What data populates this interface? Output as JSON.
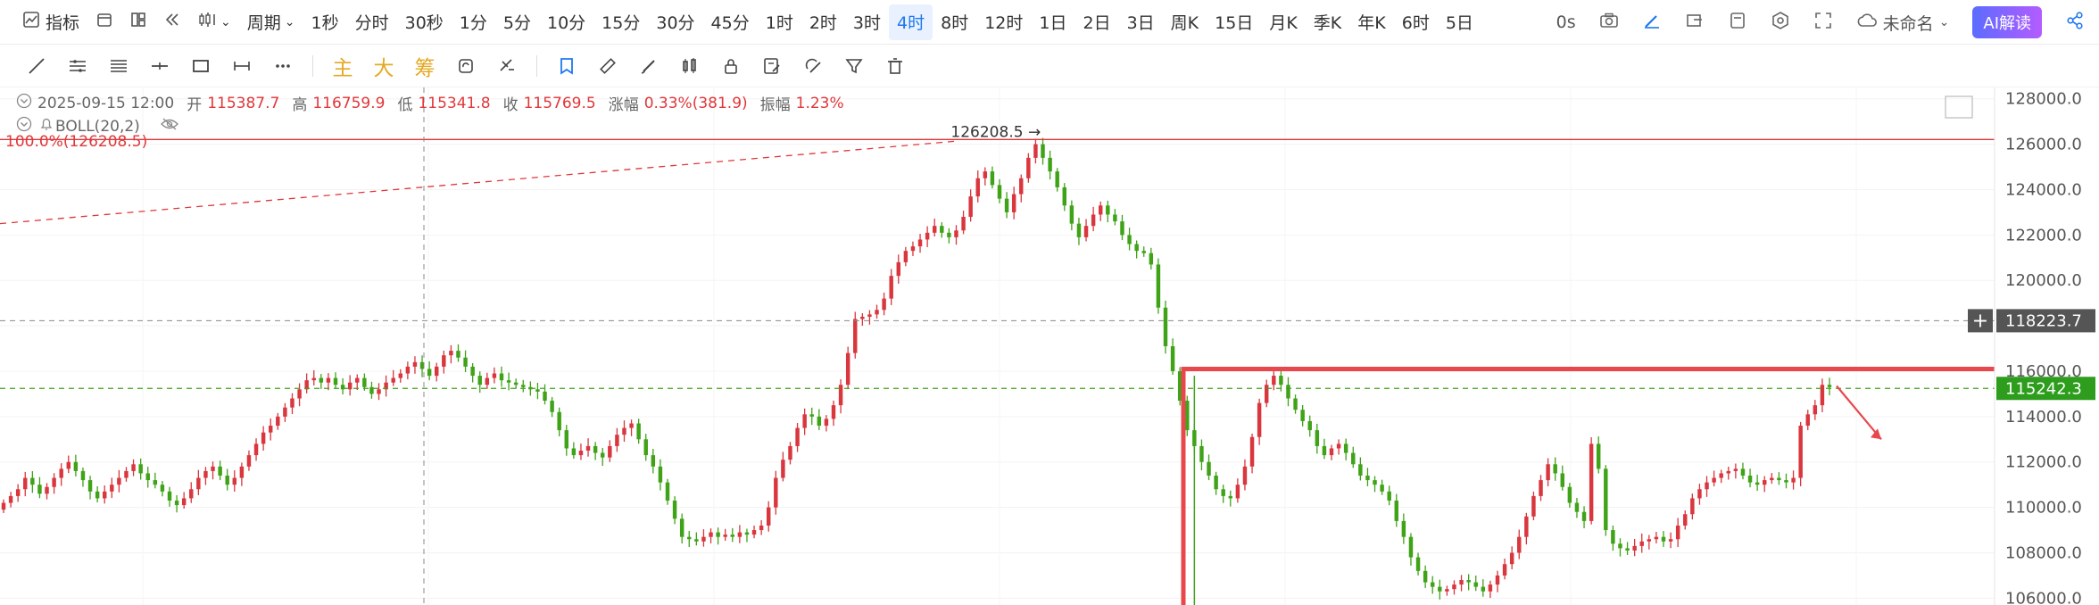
{
  "top_bar": {
    "indicator_label": "指标",
    "period_label": "周期",
    "intervals": [
      {
        "label": "1秒",
        "active": false
      },
      {
        "label": "分时",
        "active": false
      },
      {
        "label": "30秒",
        "active": false
      },
      {
        "label": "1分",
        "active": false
      },
      {
        "label": "5分",
        "active": false
      },
      {
        "label": "10分",
        "active": false
      },
      {
        "label": "15分",
        "active": false
      },
      {
        "label": "30分",
        "active": false
      },
      {
        "label": "45分",
        "active": false
      },
      {
        "label": "1时",
        "active": false
      },
      {
        "label": "2时",
        "active": false
      },
      {
        "label": "3时",
        "active": false
      },
      {
        "label": "4时",
        "active": true
      },
      {
        "label": "8时",
        "active": false
      },
      {
        "label": "12时",
        "active": false
      },
      {
        "label": "1日",
        "active": false
      },
      {
        "label": "2日",
        "active": false
      },
      {
        "label": "3日",
        "active": false
      },
      {
        "label": "周K",
        "active": false
      },
      {
        "label": "15日",
        "active": false
      },
      {
        "label": "月K",
        "active": false
      },
      {
        "label": "季K",
        "active": false
      },
      {
        "label": "年K",
        "active": false
      },
      {
        "label": "6时",
        "active": false
      },
      {
        "label": "5日",
        "active": false
      }
    ],
    "timer": "0s",
    "layout_name": "未命名",
    "ai_button": "AI解读"
  },
  "drawing_toolbar": {
    "main_label": "主",
    "big_label": "大",
    "chip_label": "筹"
  },
  "ohlc_info": {
    "datetime": "2025-09-15 12:00",
    "open_label": "开",
    "open": "115387.7",
    "high_label": "高",
    "high": "116759.9",
    "low_label": "低",
    "low": "115341.8",
    "close_label": "收",
    "close": "115769.5",
    "change_label": "涨幅",
    "change": "0.33%(381.9)",
    "amplitude_label": "振幅",
    "amplitude": "1.23%"
  },
  "indicator": {
    "name": "BOLL(20,2)"
  },
  "fib_label": "100.0%(126208.5)",
  "peak_label": "126208.5",
  "price_tags": {
    "crosshair": "118223.7",
    "current": "115242.3"
  },
  "colors": {
    "up": "#d9363e",
    "down": "#3ea317",
    "active_tab": "#1e78f0",
    "current_price_tag": "#2e9d1e",
    "crosshair_tag": "#555555",
    "highlight_box": "#e8484c"
  },
  "chart_data": {
    "type": "candlestick",
    "y_ticks": [
      "128000.0",
      "126000.0",
      "124000.0",
      "122000.0",
      "120000.0",
      "118000.0",
      "116000.0",
      "114000.0",
      "112000.0",
      "110000.0",
      "108000.0",
      "106000.0"
    ],
    "ylim": [
      105700,
      128500
    ],
    "lines": [
      {
        "price": 126208.5,
        "style": "solid",
        "color": "#e0373a"
      },
      {
        "price": 118223.7,
        "style": "dashed",
        "color": "#888888"
      },
      {
        "price": 115242.3,
        "style": "dashed",
        "color": "#3ea317"
      }
    ],
    "close_series": [
      110200,
      110500,
      110800,
      111300,
      111000,
      110600,
      110900,
      111300,
      111700,
      112000,
      111600,
      111200,
      110700,
      110400,
      110700,
      111000,
      111300,
      111600,
      111900,
      111500,
      111200,
      111000,
      110700,
      110300,
      110100,
      110400,
      110800,
      111300,
      111600,
      111800,
      111400,
      111000,
      111300,
      111800,
      112300,
      112800,
      113300,
      113600,
      114000,
      114400,
      114800,
      115200,
      115600,
      115700,
      115500,
      115700,
      115400,
      115200,
      115500,
      115700,
      115300,
      115000,
      115200,
      115500,
      115700,
      115900,
      116200,
      116400,
      116100,
      115800,
      116200,
      116700,
      116900,
      116600,
      116200,
      115800,
      115400,
      115700,
      115900,
      115600,
      115500,
      115400,
      115300,
      115200,
      115100,
      114700,
      114200,
      113400,
      112600,
      112300,
      112500,
      112700,
      112400,
      112200,
      112700,
      113200,
      113500,
      113700,
      113000,
      112300,
      111800,
      111100,
      110300,
      109500,
      108700,
      108600,
      108500,
      108700,
      108900,
      108700,
      108800,
      108700,
      108900,
      108800,
      109000,
      109200,
      110000,
      111300,
      112100,
      112700,
      113500,
      114100,
      114000,
      113600,
      113900,
      114500,
      115400,
      116800,
      118300,
      118400,
      118500,
      118700,
      119200,
      120200,
      120800,
      121300,
      121500,
      121800,
      122100,
      122400,
      122100,
      121900,
      122200,
      122800,
      123700,
      124500,
      124800,
      124200,
      123600,
      123000,
      123800,
      124500,
      125400,
      126000,
      125400,
      124800,
      124100,
      123300,
      122500,
      121900,
      122400,
      122900,
      123300,
      122900,
      122600,
      122000,
      121600,
      121300,
      121200,
      120700,
      118800,
      117100,
      116000,
      114700,
      113400,
      112700,
      112000,
      111400,
      110800,
      110500,
      110400,
      111000,
      111800,
      113100,
      114600,
      115400,
      115800,
      115400,
      114800,
      114300,
      113800,
      113400,
      112700,
      112300,
      112600,
      112800,
      112400,
      111900,
      111400,
      111200,
      111000,
      110700,
      110300,
      109400,
      108700,
      107800,
      107200,
      106700,
      106500,
      106300,
      106400,
      106600,
      106800,
      106700,
      106500,
      106300,
      106600,
      107000,
      107500,
      108000,
      108700,
      109600,
      110500,
      111200,
      111900,
      111500,
      110900,
      110200,
      109800,
      109400,
      112800,
      111700,
      109000,
      108400,
      108200,
      108100,
      108300,
      108500,
      108600,
      108700,
      108500,
      108600,
      109200,
      109700,
      110400,
      110800,
      111100,
      111300,
      111500,
      111600,
      111700,
      111400,
      111100,
      111000,
      111200,
      111300,
      111200,
      111100,
      111300,
      113600,
      114100,
      114500,
      115400,
      115300
    ],
    "series_note": "4-hour candles, closing prices read approximately from the price axis"
  }
}
